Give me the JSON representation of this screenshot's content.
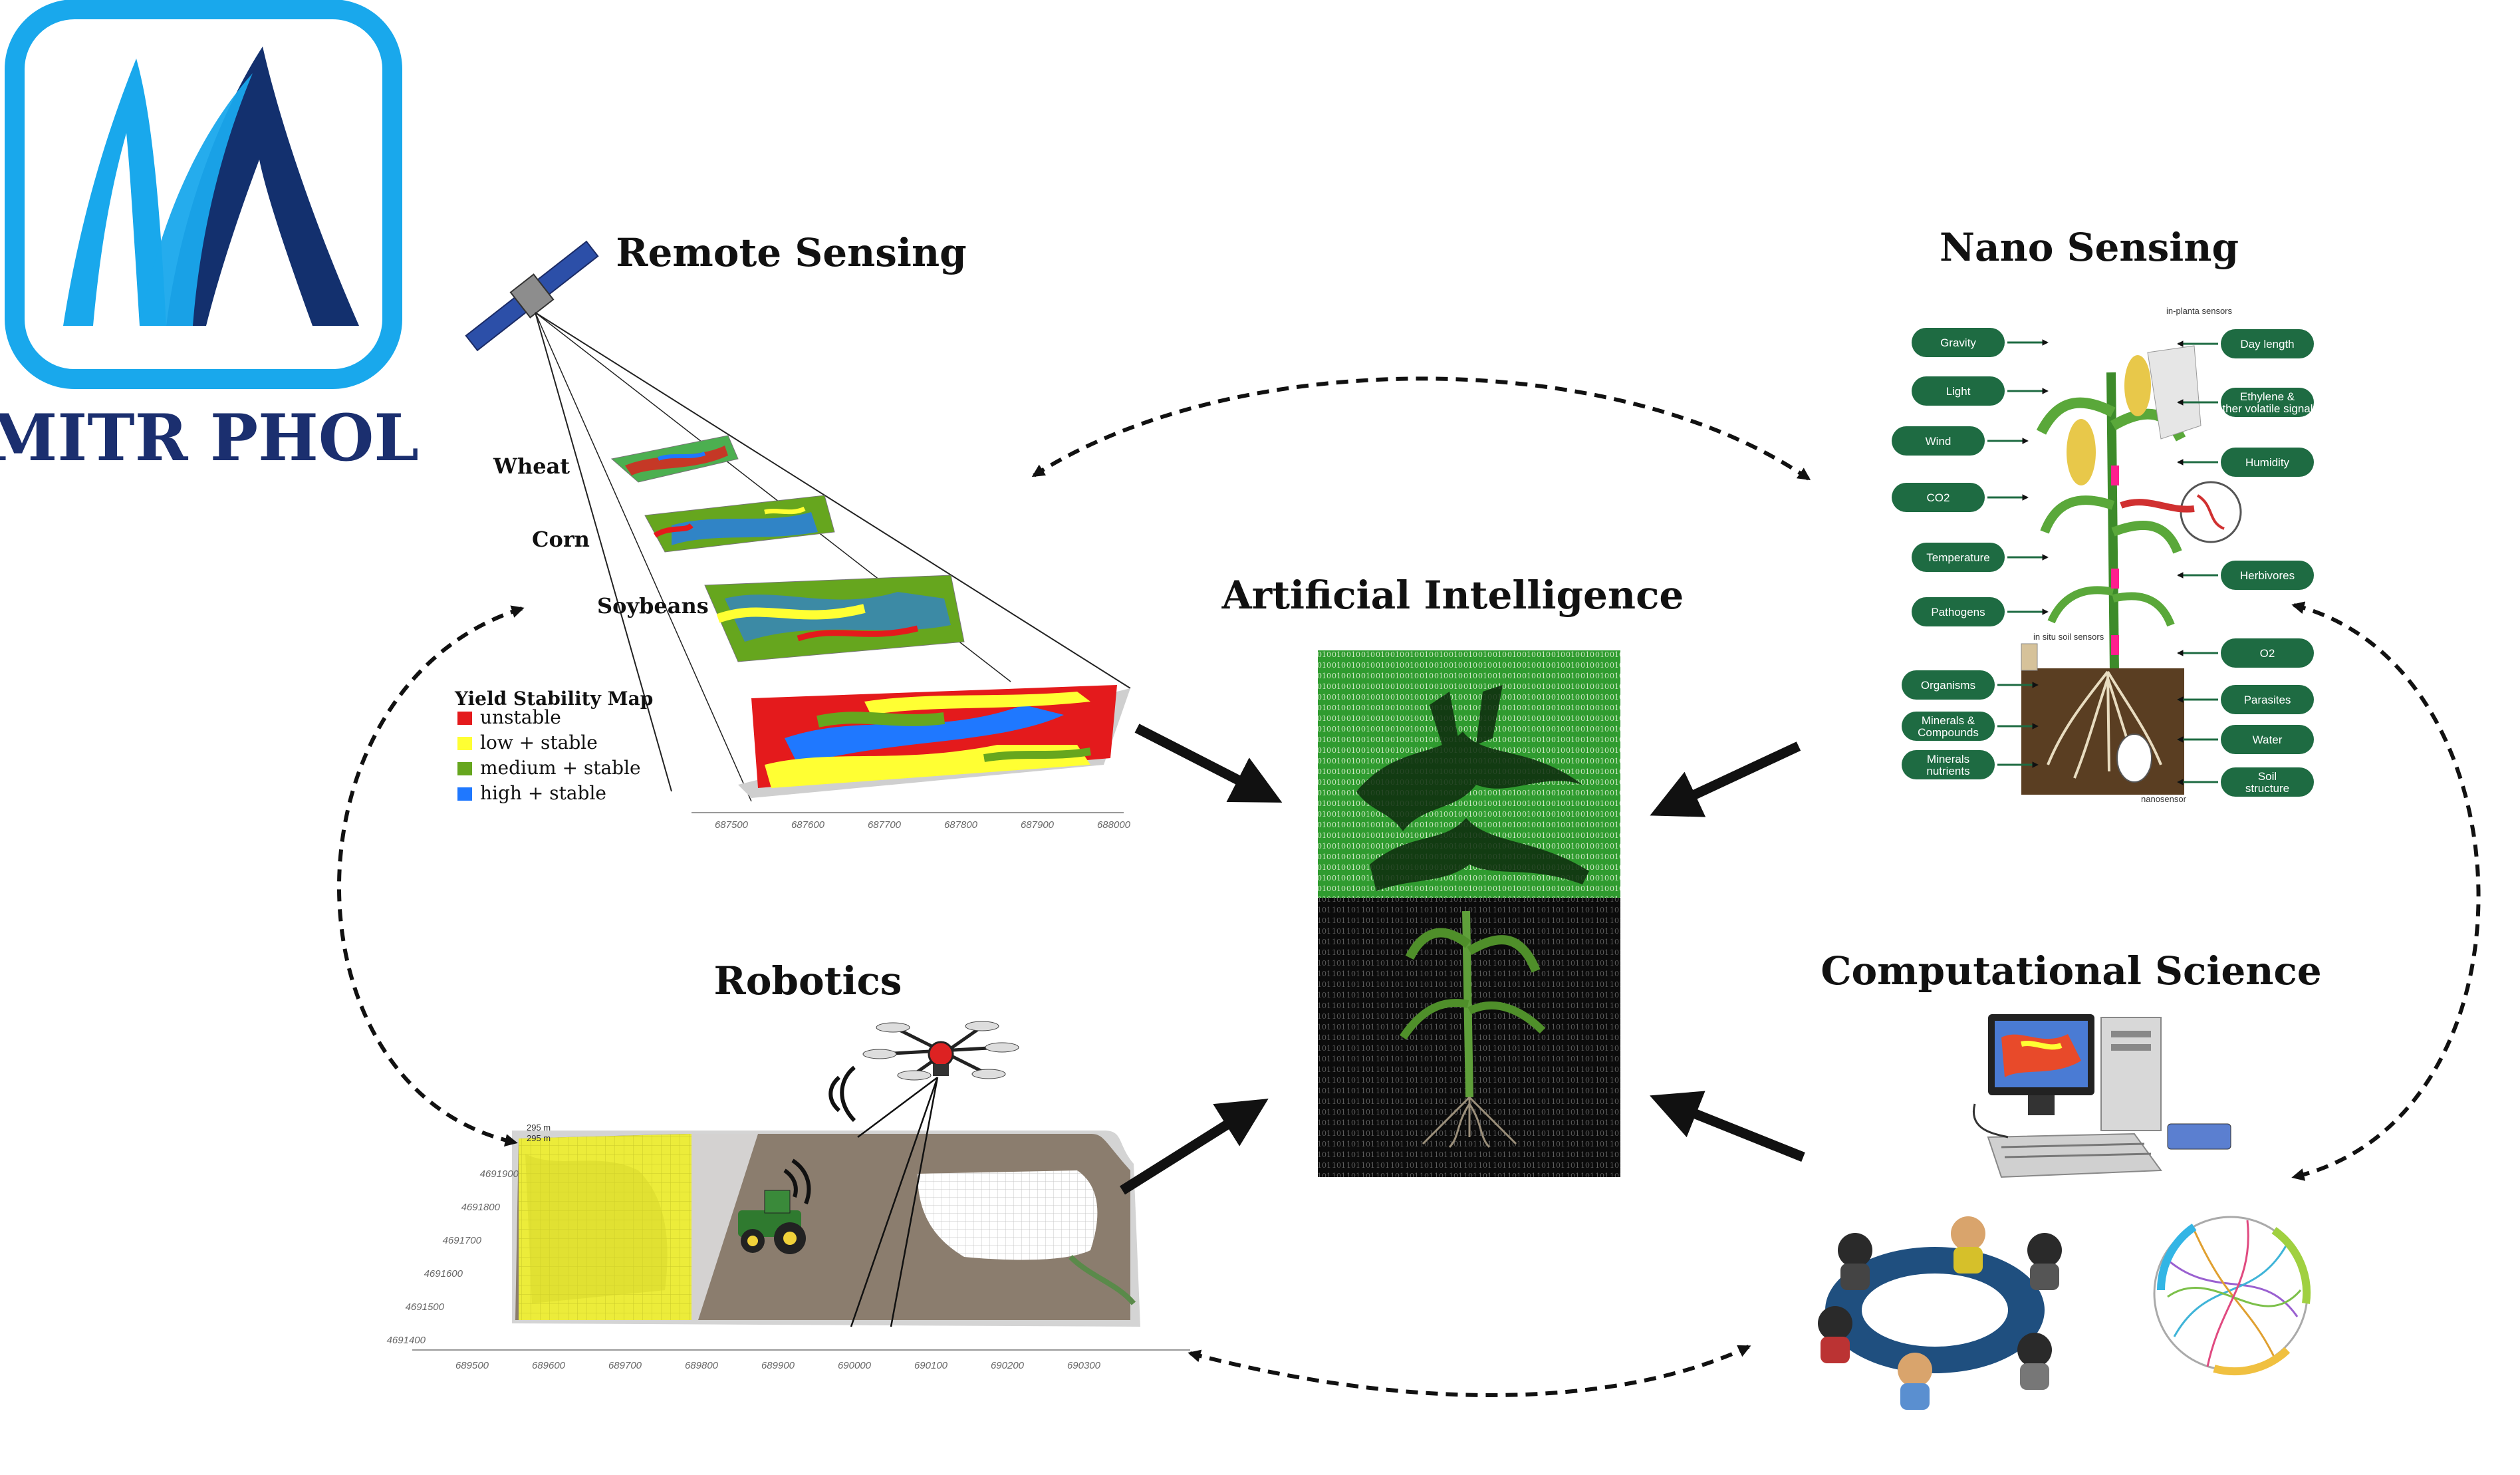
{
  "logo": {
    "text": "MITR PHOL",
    "colors": {
      "light": "#19a8ec",
      "dark": "#13306e"
    }
  },
  "center": {
    "title": "Artificial Intelligence"
  },
  "remote_sensing": {
    "title": "Remote Sensing",
    "layers": [
      "Wheat",
      "Corn",
      "Soybeans"
    ],
    "legend": {
      "title": "Yield Stability Map",
      "items": [
        {
          "label": "unstable",
          "color": "#e41a1c"
        },
        {
          "label": "low + stable",
          "color": "#ffff33"
        },
        {
          "label": "medium + stable",
          "color": "#66a61e"
        },
        {
          "label": "high + stable",
          "color": "#1f78ff"
        }
      ]
    },
    "axis_ticks": [
      "687500",
      "687600",
      "687700",
      "687800",
      "687900",
      "688000"
    ]
  },
  "nano_sensing": {
    "title": "Nano Sensing",
    "in_planta": "in-planta sensors",
    "in_situ": "in situ soil sensors",
    "nanosensor": "nanosensor",
    "left_labels": [
      "Gravity",
      "Light",
      "Wind",
      "CO2",
      "Temperature",
      "Pathogens",
      "Organisms",
      "Minerals & Compounds",
      "Minerals nutrients"
    ],
    "right_labels": [
      "Day length",
      "Ethylene & other volatile signals",
      "Humidity",
      "Herbivores",
      "O2",
      "Parasites",
      "Water",
      "Soil structure"
    ]
  },
  "robotics": {
    "title": "Robotics",
    "scale": [
      "295 m",
      "295 m"
    ],
    "y_ticks": [
      "4691900",
      "4691800",
      "4691700",
      "4691600",
      "4691500",
      "4691400"
    ],
    "x_ticks": [
      "689500",
      "689600",
      "689700",
      "689800",
      "689900",
      "690000",
      "690100",
      "690200",
      "690300"
    ]
  },
  "computational_science": {
    "title": "Computational Science"
  }
}
